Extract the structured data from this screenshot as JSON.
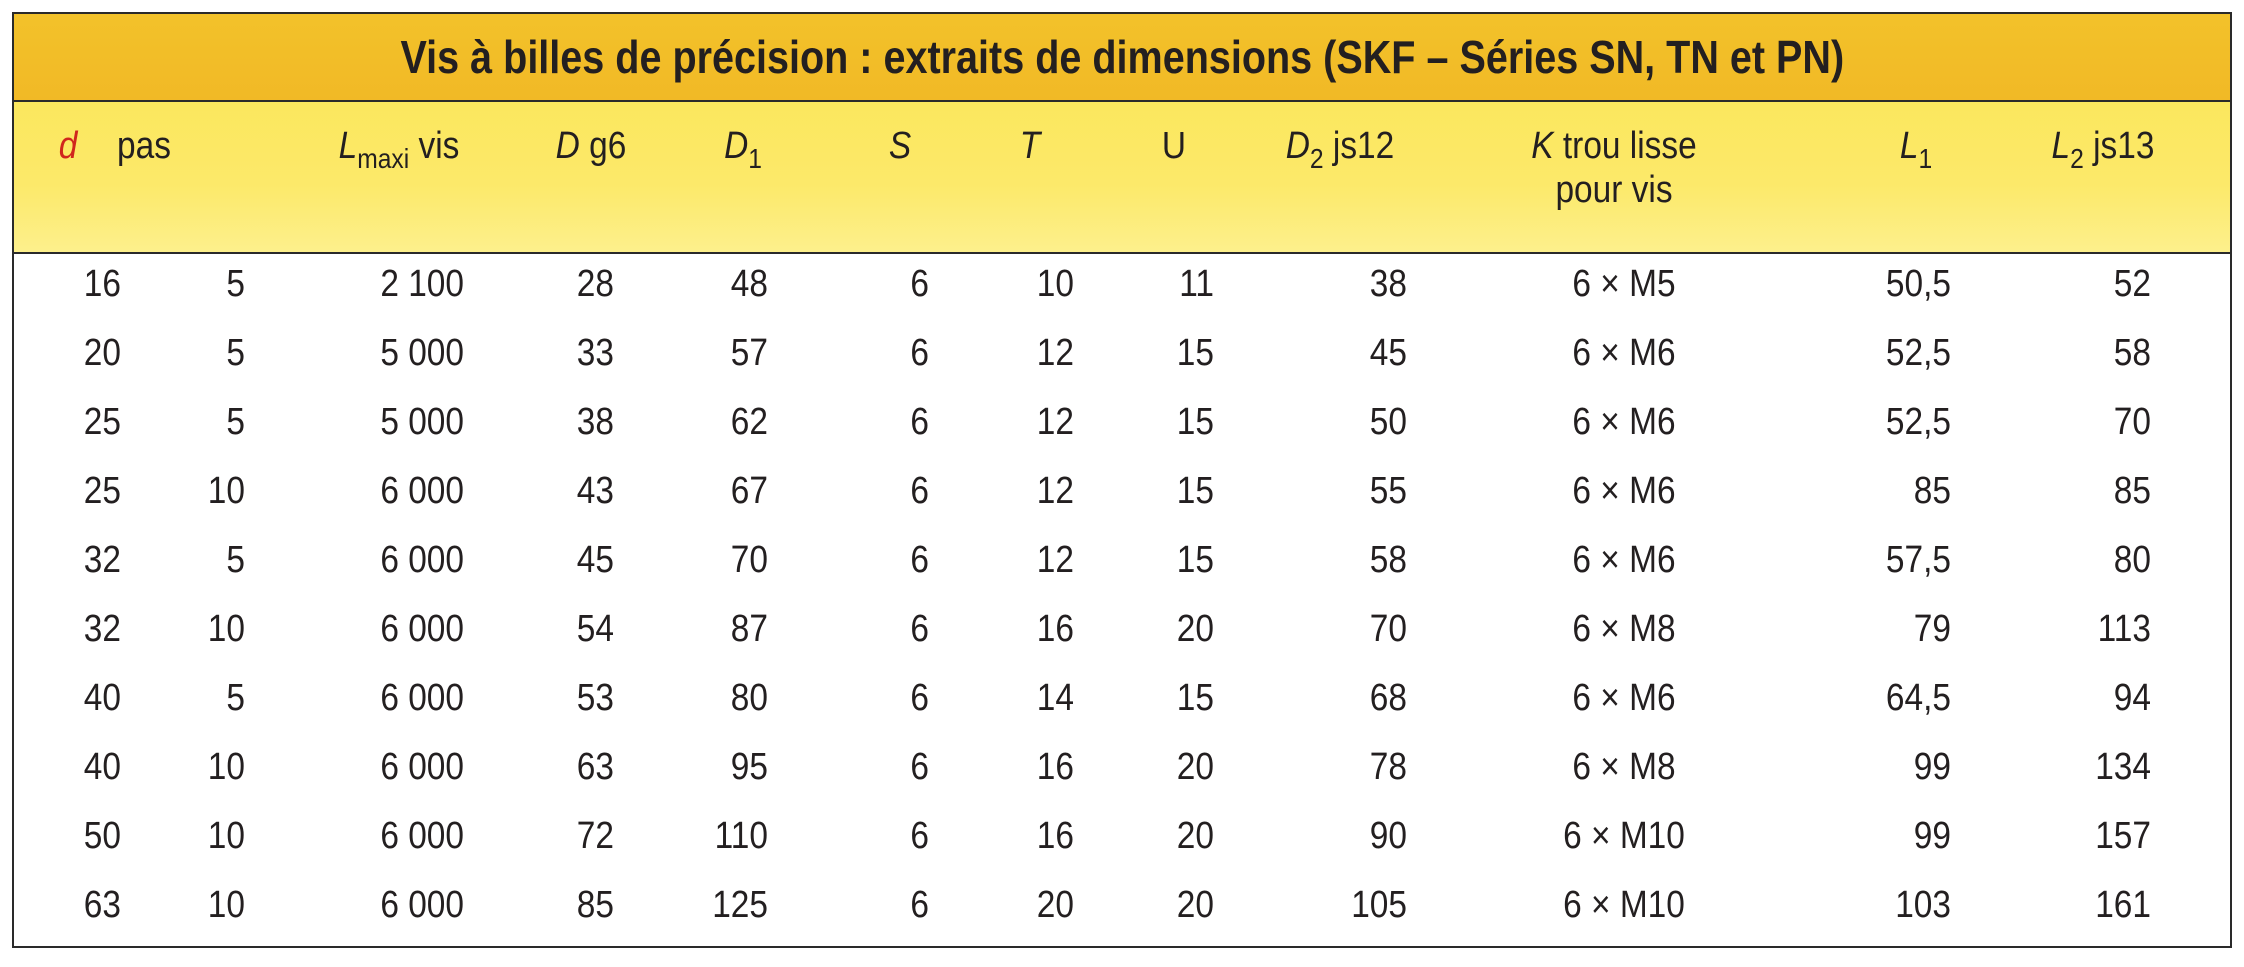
{
  "title": "Vis à billes de précision : extraits de dimensions (SKF – Séries SN, TN et PN)",
  "headers": [
    {
      "key": "d",
      "main": "d",
      "sub": "",
      "suffix": ""
    },
    {
      "key": "pas",
      "main": "pas",
      "sub": "",
      "suffix": ""
    },
    {
      "key": "lmaxi",
      "main": "L",
      "sub": "maxi",
      "suffix": " vis"
    },
    {
      "key": "dg6",
      "main": "D",
      "sub": "",
      "suffix": " g6"
    },
    {
      "key": "d1",
      "main": "D",
      "sub": "1",
      "suffix": ""
    },
    {
      "key": "s",
      "main": "S",
      "sub": "",
      "suffix": ""
    },
    {
      "key": "t",
      "main": "T",
      "sub": "",
      "suffix": ""
    },
    {
      "key": "u",
      "main": "U",
      "sub": "",
      "suffix": ""
    },
    {
      "key": "d2",
      "main": "D",
      "sub": "2",
      "suffix": " js12"
    },
    {
      "key": "k",
      "main": "K",
      "sub": "",
      "suffix": " trou lisse",
      "line2": "pour vis"
    },
    {
      "key": "l1",
      "main": "L",
      "sub": "1",
      "suffix": ""
    },
    {
      "key": "l2",
      "main": "L",
      "sub": "2",
      "suffix": " js13"
    }
  ],
  "rows": [
    [
      "16",
      "5",
      "2 100",
      "28",
      "48",
      "6",
      "10",
      "11",
      "38",
      "6 × M5",
      "50,5",
      "52"
    ],
    [
      "20",
      "5",
      "5 000",
      "33",
      "57",
      "6",
      "12",
      "15",
      "45",
      "6 × M6",
      "52,5",
      "58"
    ],
    [
      "25",
      "5",
      "5 000",
      "38",
      "62",
      "6",
      "12",
      "15",
      "50",
      "6 × M6",
      "52,5",
      "70"
    ],
    [
      "25",
      "10",
      "6 000",
      "43",
      "67",
      "6",
      "12",
      "15",
      "55",
      "6 × M6",
      "85",
      "85"
    ],
    [
      "32",
      "5",
      "6 000",
      "45",
      "70",
      "6",
      "12",
      "15",
      "58",
      "6 × M6",
      "57,5",
      "80"
    ],
    [
      "32",
      "10",
      "6 000",
      "54",
      "87",
      "6",
      "16",
      "20",
      "70",
      "6 × M8",
      "79",
      "113"
    ],
    [
      "40",
      "5",
      "6 000",
      "53",
      "80",
      "6",
      "14",
      "15",
      "68",
      "6 × M6",
      "64,5",
      "94"
    ],
    [
      "40",
      "10",
      "6 000",
      "63",
      "95",
      "6",
      "16",
      "20",
      "78",
      "6 × M8",
      "99",
      "134"
    ],
    [
      "50",
      "10",
      "6 000",
      "72",
      "110",
      "6",
      "16",
      "20",
      "90",
      "6 × M10",
      "99",
      "157"
    ],
    [
      "63",
      "10",
      "6 000",
      "85",
      "125",
      "6",
      "20",
      "20",
      "105",
      "6 × M10",
      "103",
      "161"
    ]
  ],
  "colors": {
    "title_bg": "#f2bd28",
    "header_bg": "#fce96a",
    "d_header": "#d0261d",
    "text": "#231f20"
  }
}
